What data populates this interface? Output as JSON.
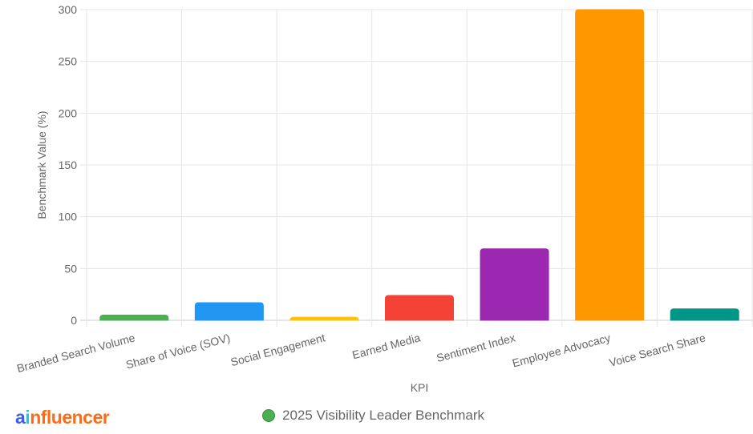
{
  "chart_data": {
    "type": "bar",
    "categories": [
      "Branded Search Volume",
      "Share of Voice (SOV)",
      "Social Engagement",
      "Earned Media",
      "Sentiment Index",
      "Employee Advocacy",
      "Voice Search Share"
    ],
    "values": [
      5,
      17,
      3,
      24,
      69,
      300,
      11
    ],
    "colors": [
      "#4caf50",
      "#2196f3",
      "#ffc107",
      "#f44336",
      "#9c27b0",
      "#ff9800",
      "#009688"
    ],
    "xlabel": "KPI",
    "ylabel": "Benchmark Value (%)",
    "ylim": [
      0,
      300
    ],
    "yticks": [
      0,
      50,
      100,
      150,
      200,
      250,
      300
    ],
    "grid": true,
    "legend": {
      "position": "bottom",
      "entries": [
        "2025 Visibility Leader Benchmark"
      ]
    }
  },
  "logo": {
    "a": "a",
    "i": "i",
    "rest": "nfluencer"
  }
}
